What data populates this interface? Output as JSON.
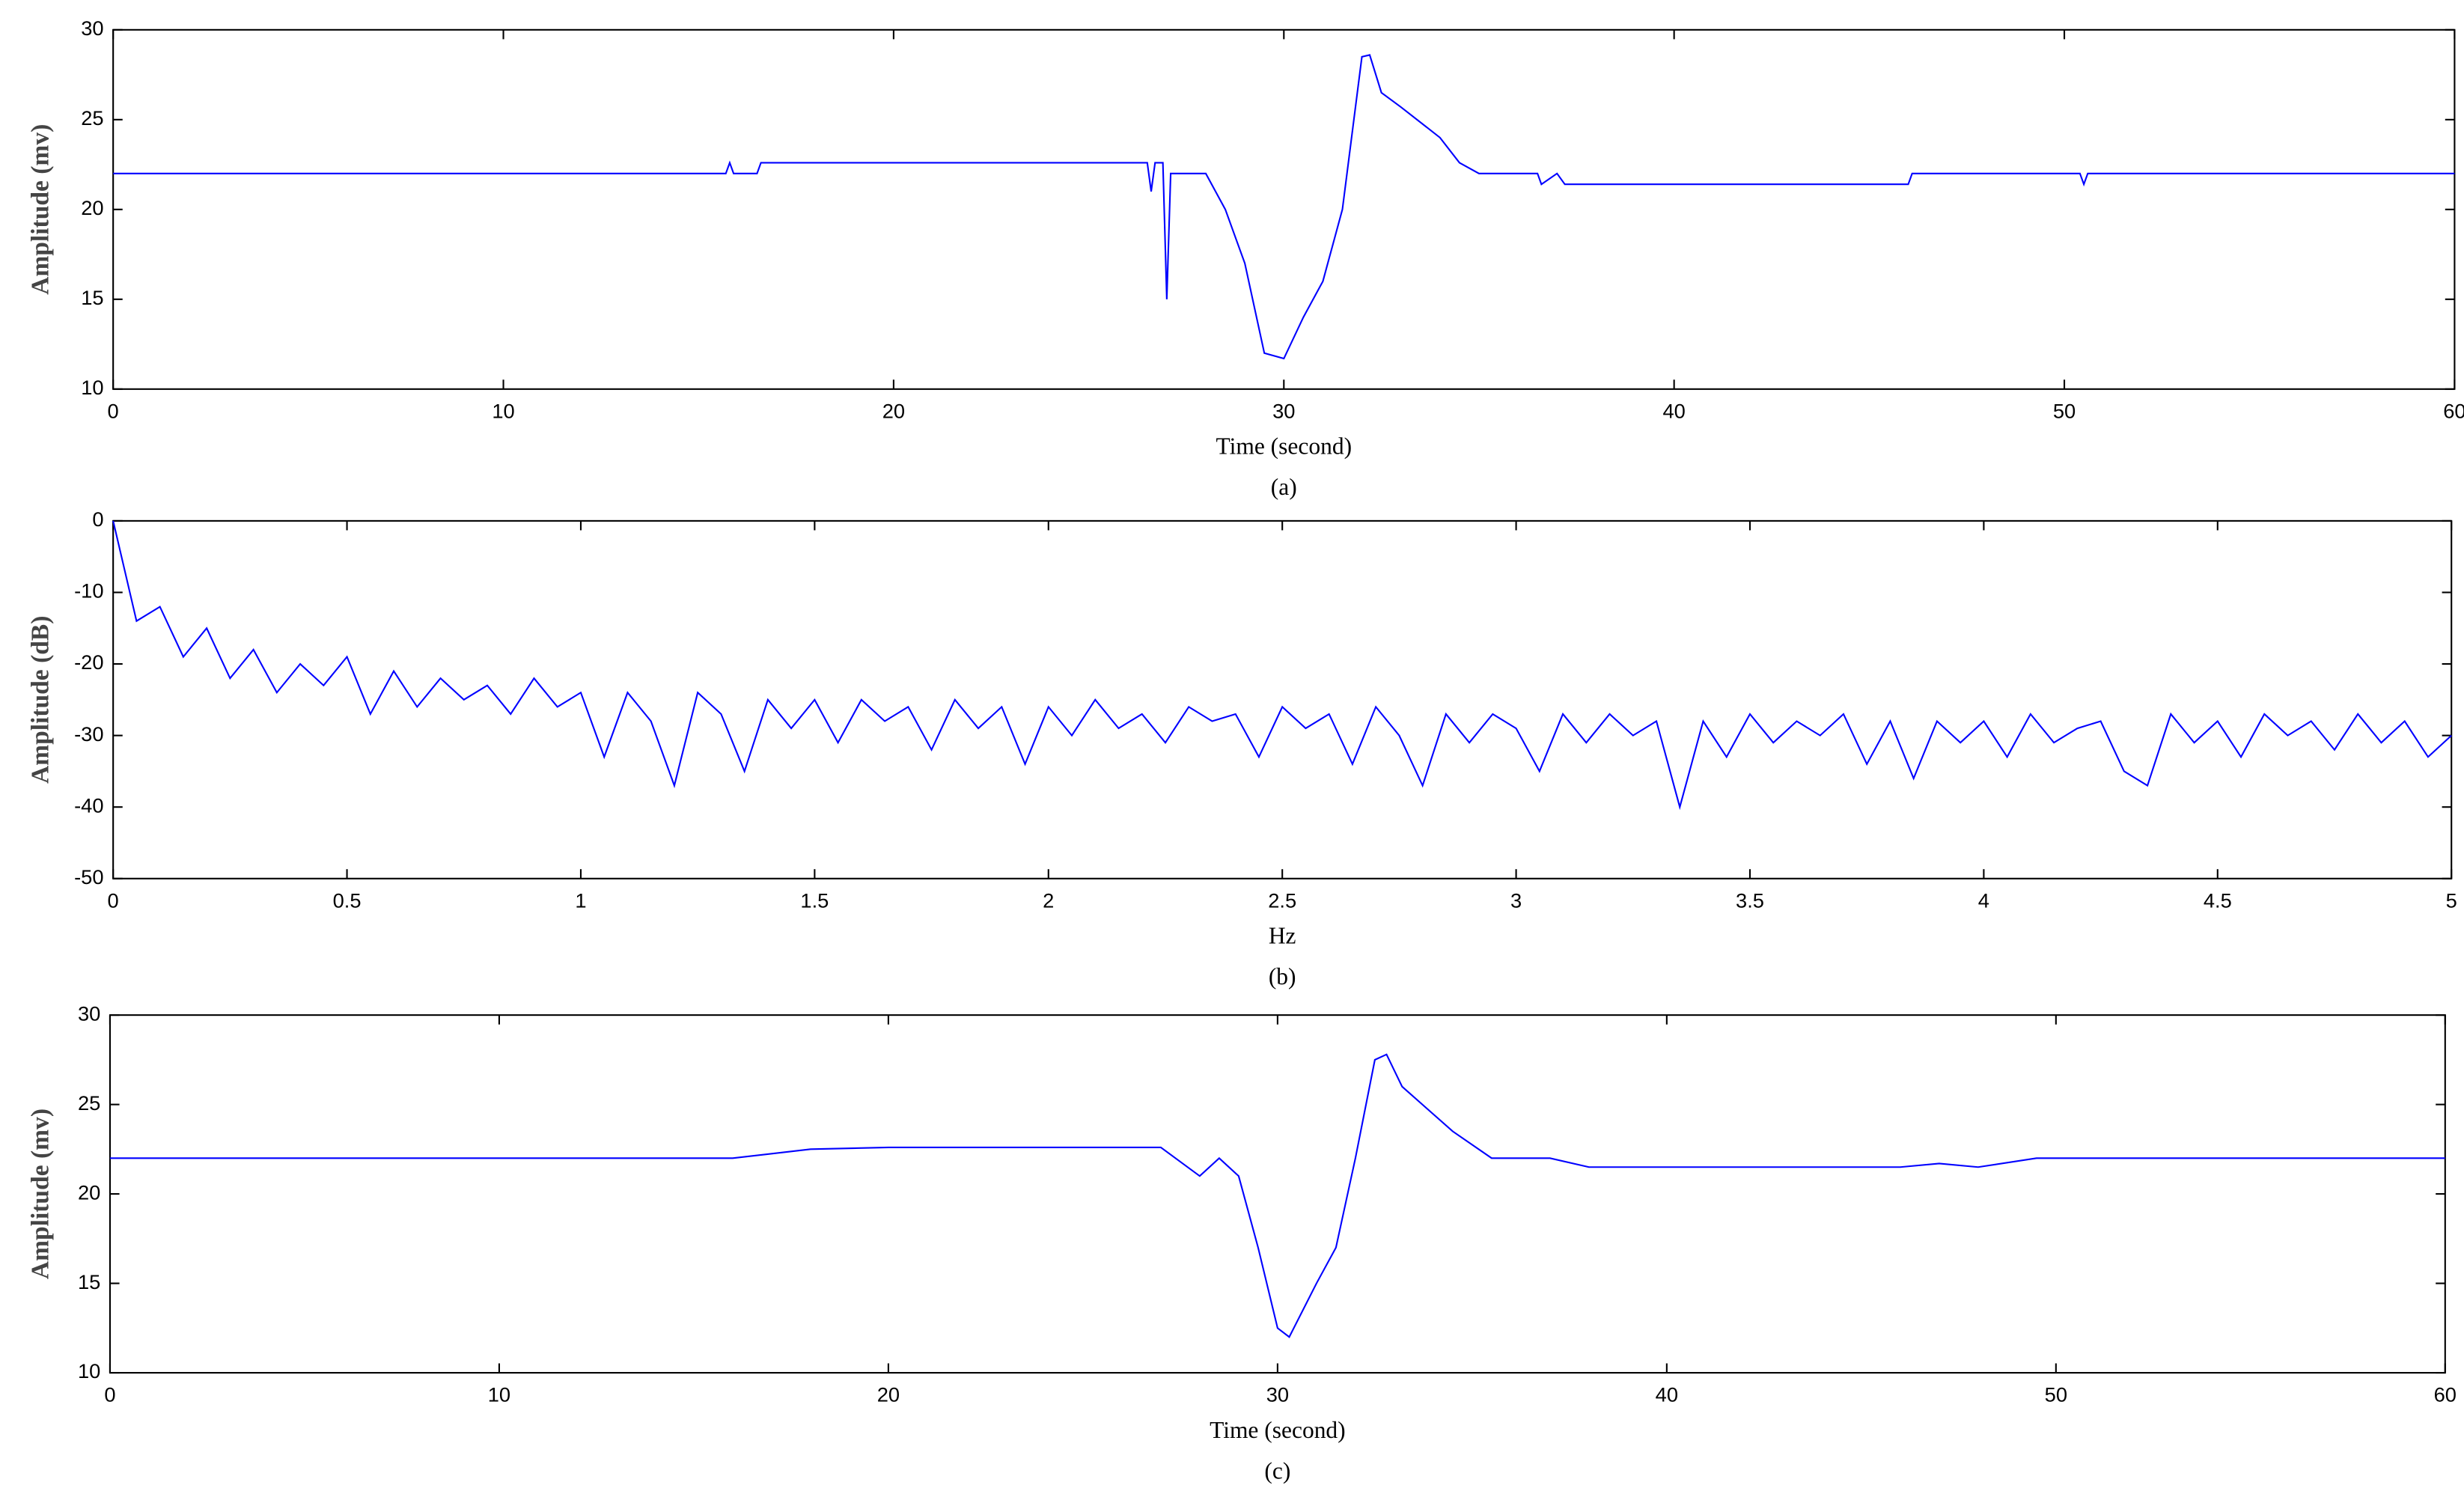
{
  "chart_data": [
    {
      "type": "line",
      "caption": "(a)",
      "xlabel": "Time (second)",
      "ylabel": "Amplitude (mv)",
      "color": "#0000ff",
      "x": [
        0,
        15.7,
        15.8,
        15.9,
        16.5,
        16.6,
        17,
        18,
        26.5,
        26.6,
        26.7,
        26.9,
        27,
        27.1,
        28,
        28.5,
        29,
        29.5,
        30,
        30.5,
        31,
        31.5,
        32,
        32.2,
        32.5,
        33,
        34,
        34.5,
        35,
        36.5,
        36.6,
        37,
        37.2,
        46,
        46.1,
        47,
        49,
        50.4,
        50.5,
        50.6,
        60
      ],
      "values": [
        22,
        22,
        22.6,
        22,
        22,
        22.6,
        22.6,
        22.6,
        22.6,
        21,
        22.6,
        22.6,
        15,
        22,
        22,
        20,
        17,
        12,
        11.7,
        14,
        16,
        20,
        28.5,
        28.6,
        26.5,
        25.7,
        24,
        22.6,
        22,
        22,
        21.4,
        22,
        21.4,
        21.4,
        22,
        22,
        22,
        22,
        21.4,
        22,
        22
      ],
      "xlim": [
        0,
        60
      ],
      "ylim": [
        10,
        30
      ],
      "xticks": [
        0,
        10,
        20,
        30,
        40,
        50,
        60
      ],
      "yticks": [
        10,
        15,
        20,
        25,
        30
      ]
    },
    {
      "type": "line",
      "caption": "(b)",
      "xlabel": "Hz",
      "ylabel": "Amplitude (dB)",
      "color": "#0000ff",
      "x": [
        0,
        0.05,
        0.1,
        0.15,
        0.2,
        0.25,
        0.3,
        0.35,
        0.4,
        0.45,
        0.5,
        0.55,
        0.6,
        0.65,
        0.7,
        0.75,
        0.8,
        0.85,
        0.9,
        0.95,
        1,
        1.05,
        1.1,
        1.15,
        1.2,
        1.25,
        1.3,
        1.35,
        1.4,
        1.45,
        1.5,
        1.55,
        1.6,
        1.65,
        1.7,
        1.75,
        1.8,
        1.85,
        1.9,
        1.95,
        2,
        2.05,
        2.1,
        2.15,
        2.2,
        2.25,
        2.3,
        2.35,
        2.4,
        2.45,
        2.5,
        2.55,
        2.6,
        2.65,
        2.7,
        2.75,
        2.8,
        2.85,
        2.9,
        2.95,
        3,
        3.05,
        3.1,
        3.15,
        3.2,
        3.25,
        3.3,
        3.35,
        3.4,
        3.45,
        3.5,
        3.55,
        3.6,
        3.65,
        3.7,
        3.75,
        3.8,
        3.85,
        3.9,
        3.95,
        4,
        4.05,
        4.1,
        4.15,
        4.2,
        4.25,
        4.3,
        4.35,
        4.4,
        4.45,
        4.5,
        4.55,
        4.6,
        4.65,
        4.7,
        4.75,
        4.8,
        4.85,
        4.9,
        4.95,
        5
      ],
      "values": [
        0,
        -14,
        -12,
        -19,
        -15,
        -22,
        -18,
        -24,
        -20,
        -23,
        -19,
        -27,
        -21,
        -26,
        -22,
        -25,
        -23,
        -27,
        -22,
        -26,
        -24,
        -33,
        -24,
        -28,
        -37,
        -24,
        -27,
        -35,
        -25,
        -29,
        -25,
        -31,
        -25,
        -28,
        -26,
        -32,
        -25,
        -29,
        -26,
        -34,
        -26,
        -30,
        -25,
        -29,
        -27,
        -31,
        -26,
        -28,
        -27,
        -33,
        -26,
        -29,
        -27,
        -34,
        -26,
        -30,
        -37,
        -27,
        -31,
        -27,
        -29,
        -35,
        -27,
        -31,
        -27,
        -30,
        -28,
        -40,
        -28,
        -33,
        -27,
        -31,
        -28,
        -30,
        -27,
        -34,
        -28,
        -36,
        -28,
        -31,
        -28,
        -33,
        -27,
        -31,
        -29,
        -28,
        -35,
        -37,
        -27,
        -31,
        -28,
        -33,
        -27,
        -30,
        -28,
        -32,
        -27,
        -31,
        -28,
        -33,
        -30
      ],
      "xlim": [
        0,
        5
      ],
      "ylim": [
        -50,
        0
      ],
      "xticks": [
        0,
        0.5,
        1,
        1.5,
        2,
        2.5,
        3,
        3.5,
        4,
        4.5,
        5
      ],
      "yticks": [
        -50,
        -40,
        -30,
        -20,
        -10,
        0
      ]
    },
    {
      "type": "line",
      "caption": "(c)",
      "xlabel": "Time (second)",
      "ylabel": "Amplitude (mv)",
      "color": "#0000ff",
      "x": [
        0,
        16,
        18,
        20,
        27,
        28,
        28.5,
        29,
        29.5,
        30,
        30.3,
        31,
        31.5,
        32,
        32.5,
        32.8,
        33.2,
        34.5,
        35.5,
        37,
        38,
        46,
        47,
        48,
        49.5,
        60
      ],
      "values": [
        22,
        22,
        22.5,
        22.6,
        22.6,
        21,
        22,
        21,
        17,
        12.5,
        12,
        15,
        17,
        22,
        27.5,
        27.8,
        26,
        23.5,
        22,
        22,
        21.5,
        21.5,
        21.7,
        21.5,
        22,
        22
      ],
      "xlim": [
        0,
        60
      ],
      "ylim": [
        10,
        30
      ],
      "xticks": [
        0,
        10,
        20,
        30,
        40,
        50,
        60
      ],
      "yticks": [
        10,
        15,
        20,
        25,
        30
      ]
    }
  ]
}
